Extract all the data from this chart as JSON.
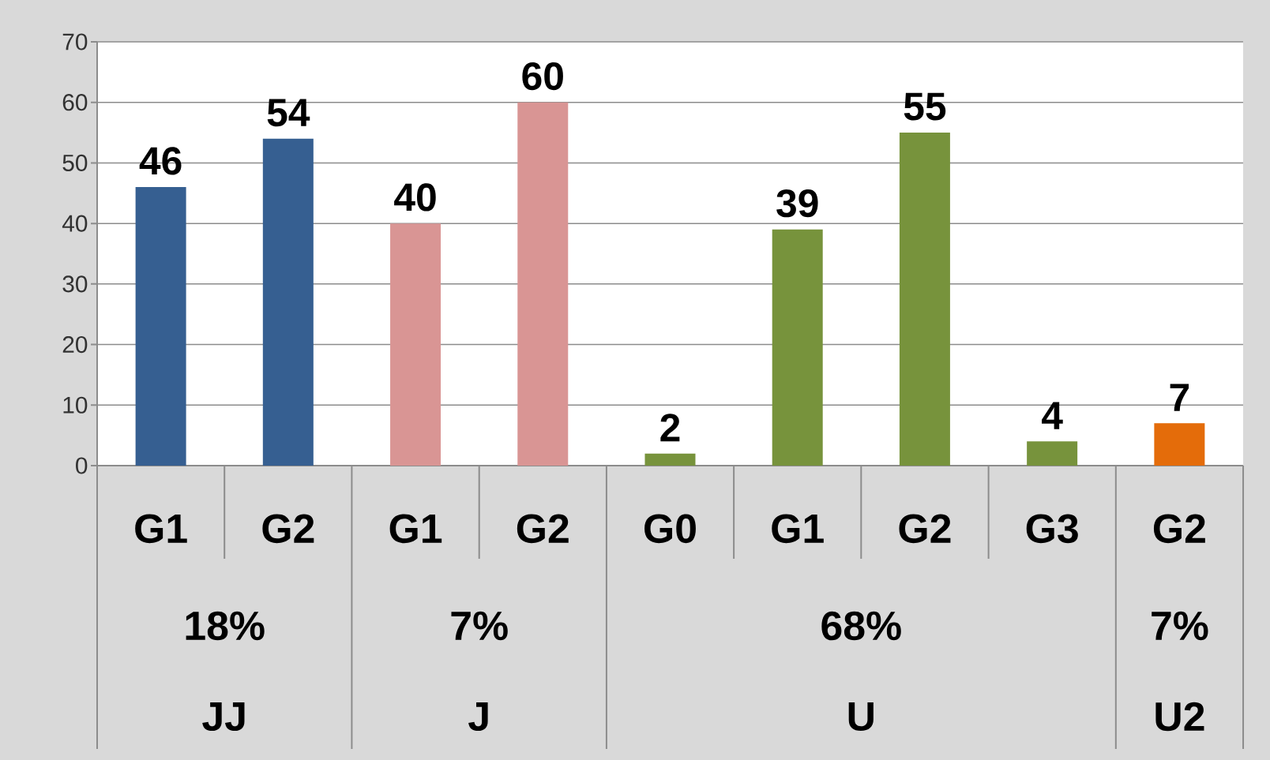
{
  "chart_data": {
    "type": "bar",
    "categories": [
      "G1",
      "G2",
      "G1",
      "G2",
      "G0",
      "G1",
      "G2",
      "G3",
      "G2"
    ],
    "values": [
      46,
      54,
      40,
      60,
      2,
      39,
      55,
      4,
      7
    ],
    "colors": [
      "#365f91",
      "#365f91",
      "#d99594",
      "#d99594",
      "#77933c",
      "#77933c",
      "#77933c",
      "#77933c",
      "#e46c0a"
    ],
    "ylim": [
      0,
      70
    ],
    "yticks": [
      0,
      10,
      20,
      30,
      40,
      50,
      60,
      70
    ],
    "grid": "y",
    "data_labels": true,
    "annotations": [
      "18%",
      "JJ",
      "7%",
      "J",
      "68%",
      "U",
      "7%",
      "U2"
    ]
  }
}
